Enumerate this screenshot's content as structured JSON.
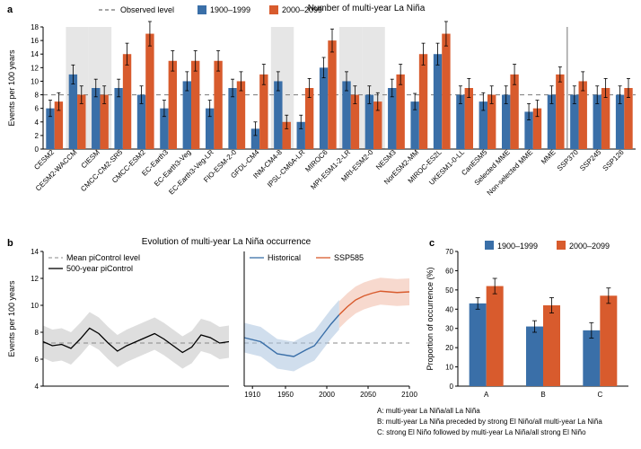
{
  "colors": {
    "blue": "#3a6fa8",
    "orange": "#d85b2d",
    "dashGray": "#888888",
    "dividerGray": "#737373",
    "shadeGray": "#e6e6e6",
    "bandGray": "#d6d6d6",
    "lineBlack": "#000000",
    "blueBand": "#a9c3de",
    "orangeBand": "#f0b9a6",
    "axis": "#000000"
  },
  "panelA": {
    "title": "Number of multi-year La Niña",
    "legend": {
      "dash": "Observed level",
      "blue": "1900–1999",
      "orange": "2000–2099"
    },
    "ylabel": "Events per 100 years",
    "ylim": [
      0,
      18
    ],
    "ytick_step": 2,
    "observed": 8,
    "dividerAfter": "MME",
    "shaded": [
      "CESM2-WACCM",
      "CIESM",
      "INM-CM4-8",
      "MPI-ESM1-2-LR",
      "MRI-ESM2-0"
    ],
    "models": [
      {
        "name": "CESM2",
        "b": 6,
        "o": 7,
        "eb": 1.2,
        "eo": 1.3
      },
      {
        "name": "CESM2-WACCM",
        "b": 11,
        "o": 8,
        "eb": 1.4,
        "eo": 1.3
      },
      {
        "name": "CIESM",
        "b": 9,
        "o": 8,
        "eb": 1.3,
        "eo": 1.3
      },
      {
        "name": "CMCC-CM2-SR5",
        "b": 9,
        "o": 14,
        "eb": 1.3,
        "eo": 1.6
      },
      {
        "name": "CMCC-ESM2",
        "b": 8,
        "o": 17,
        "eb": 1.3,
        "eo": 1.8
      },
      {
        "name": "EC-Earth3",
        "b": 6,
        "o": 13,
        "eb": 1.2,
        "eo": 1.5
      },
      {
        "name": "EC-Earth3-Veg",
        "b": 10,
        "o": 13,
        "eb": 1.4,
        "eo": 1.5
      },
      {
        "name": "EC-Earth3-Veg-LR",
        "b": 6,
        "o": 13,
        "eb": 1.2,
        "eo": 1.5
      },
      {
        "name": "FIO-ESM-2-0",
        "b": 9,
        "o": 10,
        "eb": 1.3,
        "eo": 1.4
      },
      {
        "name": "GFDL-CM4",
        "b": 3,
        "o": 11,
        "eb": 1.0,
        "eo": 1.5
      },
      {
        "name": "INM-CM4-8",
        "b": 10,
        "o": 4,
        "eb": 1.4,
        "eo": 1.0
      },
      {
        "name": "IPSL-CM6A-LR",
        "b": 4,
        "o": 9,
        "eb": 1.0,
        "eo": 1.4
      },
      {
        "name": "MIROC6",
        "b": 12,
        "o": 16,
        "eb": 1.5,
        "eo": 1.7
      },
      {
        "name": "MPI-ESM1-2-LR",
        "b": 10,
        "o": 8,
        "eb": 1.4,
        "eo": 1.3
      },
      {
        "name": "MRI-ESM2-0",
        "b": 8,
        "o": 7,
        "eb": 1.3,
        "eo": 1.3
      },
      {
        "name": "NESM3",
        "b": 9,
        "o": 11,
        "eb": 1.3,
        "eo": 1.5
      },
      {
        "name": "NorESM2-MM",
        "b": 7,
        "o": 14,
        "eb": 1.2,
        "eo": 1.6
      },
      {
        "name": "MIROC-ES2L",
        "b": 14,
        "o": 17,
        "eb": 1.6,
        "eo": 1.8
      },
      {
        "name": "UKESM1-0-LL",
        "b": 8,
        "o": 9,
        "eb": 1.3,
        "eo": 1.4
      },
      {
        "name": "CanESM5",
        "b": 7,
        "o": 8,
        "eb": 1.3,
        "eo": 1.3
      },
      {
        "name": "Selected MME",
        "b": 8,
        "o": 11,
        "eb": 1.3,
        "eo": 1.5
      },
      {
        "name": "Non-selected MME",
        "b": 5.5,
        "o": 6,
        "eb": 1.2,
        "eo": 1.2
      },
      {
        "name": "MME",
        "b": 8,
        "o": 11,
        "eb": 1.3,
        "eo": 1.1
      },
      {
        "name": "SSP370",
        "b": 8,
        "o": 10,
        "eb": 1.3,
        "eo": 1.4
      },
      {
        "name": "SSP245",
        "b": 8,
        "o": 9,
        "eb": 1.3,
        "eo": 1.4
      },
      {
        "name": "SSP126",
        "b": 8,
        "o": 9,
        "eb": 1.3,
        "eo": 1.4
      }
    ]
  },
  "panelB": {
    "title": "Evolution of multi-year La Niña occurrence",
    "ylabel": "Events per 100 years",
    "ylim": [
      4,
      14
    ],
    "ytick_step": 2,
    "legendLeft": {
      "dash": "Mean piControl level",
      "line": "500-year piControl"
    },
    "legendRight": {
      "hist": "Historical",
      "ssp": "SSP585"
    },
    "mean": 7.2,
    "left": {
      "x": [
        0,
        0.05,
        0.1,
        0.15,
        0.2,
        0.25,
        0.3,
        0.35,
        0.4,
        0.45,
        0.5,
        0.55,
        0.6,
        0.65,
        0.7,
        0.75,
        0.8,
        0.85,
        0.9,
        0.95,
        1
      ],
      "y": [
        7.3,
        7.0,
        7.1,
        6.8,
        7.5,
        8.3,
        7.9,
        7.2,
        6.6,
        7.0,
        7.3,
        7.6,
        7.9,
        7.5,
        7.0,
        6.5,
        6.9,
        7.8,
        7.6,
        7.2,
        7.3
      ],
      "band": 1.2
    },
    "right": {
      "xlim": [
        1900,
        2100
      ],
      "xticks": [
        1910,
        1950,
        2000,
        2050,
        2100
      ],
      "hist": {
        "x": [
          1900,
          1920,
          1940,
          1960,
          1975,
          1985,
          1995,
          2005,
          2015
        ],
        "y": [
          7.6,
          7.3,
          6.4,
          6.2,
          6.7,
          7.0,
          7.8,
          8.6,
          9.3
        ],
        "band": 1.1
      },
      "ssp": {
        "x": [
          2015,
          2025,
          2035,
          2045,
          2055,
          2065,
          2075,
          2085,
          2100
        ],
        "y": [
          9.3,
          9.9,
          10.4,
          10.7,
          10.9,
          11.05,
          11.0,
          10.95,
          11.0
        ],
        "band": 1.0
      }
    }
  },
  "panelC": {
    "ylabel": "Proportion of occurrence (%)",
    "ylim": [
      0,
      70
    ],
    "ytick_step": 10,
    "legend": {
      "blue": "1900–1999",
      "orange": "2000–2099"
    },
    "groups": [
      {
        "label": "A",
        "b": 43,
        "o": 52,
        "eb": 3,
        "eo": 4
      },
      {
        "label": "B",
        "b": 31,
        "o": 42,
        "eb": 3,
        "eo": 4
      },
      {
        "label": "C",
        "b": 29,
        "o": 47,
        "eb": 4,
        "eo": 4
      }
    ],
    "captions": [
      "A: multi-year La Niña/all La Niña",
      "B: multi-year La Niña preceded by strong El Niño/all multi-year La Niña",
      "C: strong El Niño followed by multi-year La Niña/all strong El Niño"
    ]
  }
}
